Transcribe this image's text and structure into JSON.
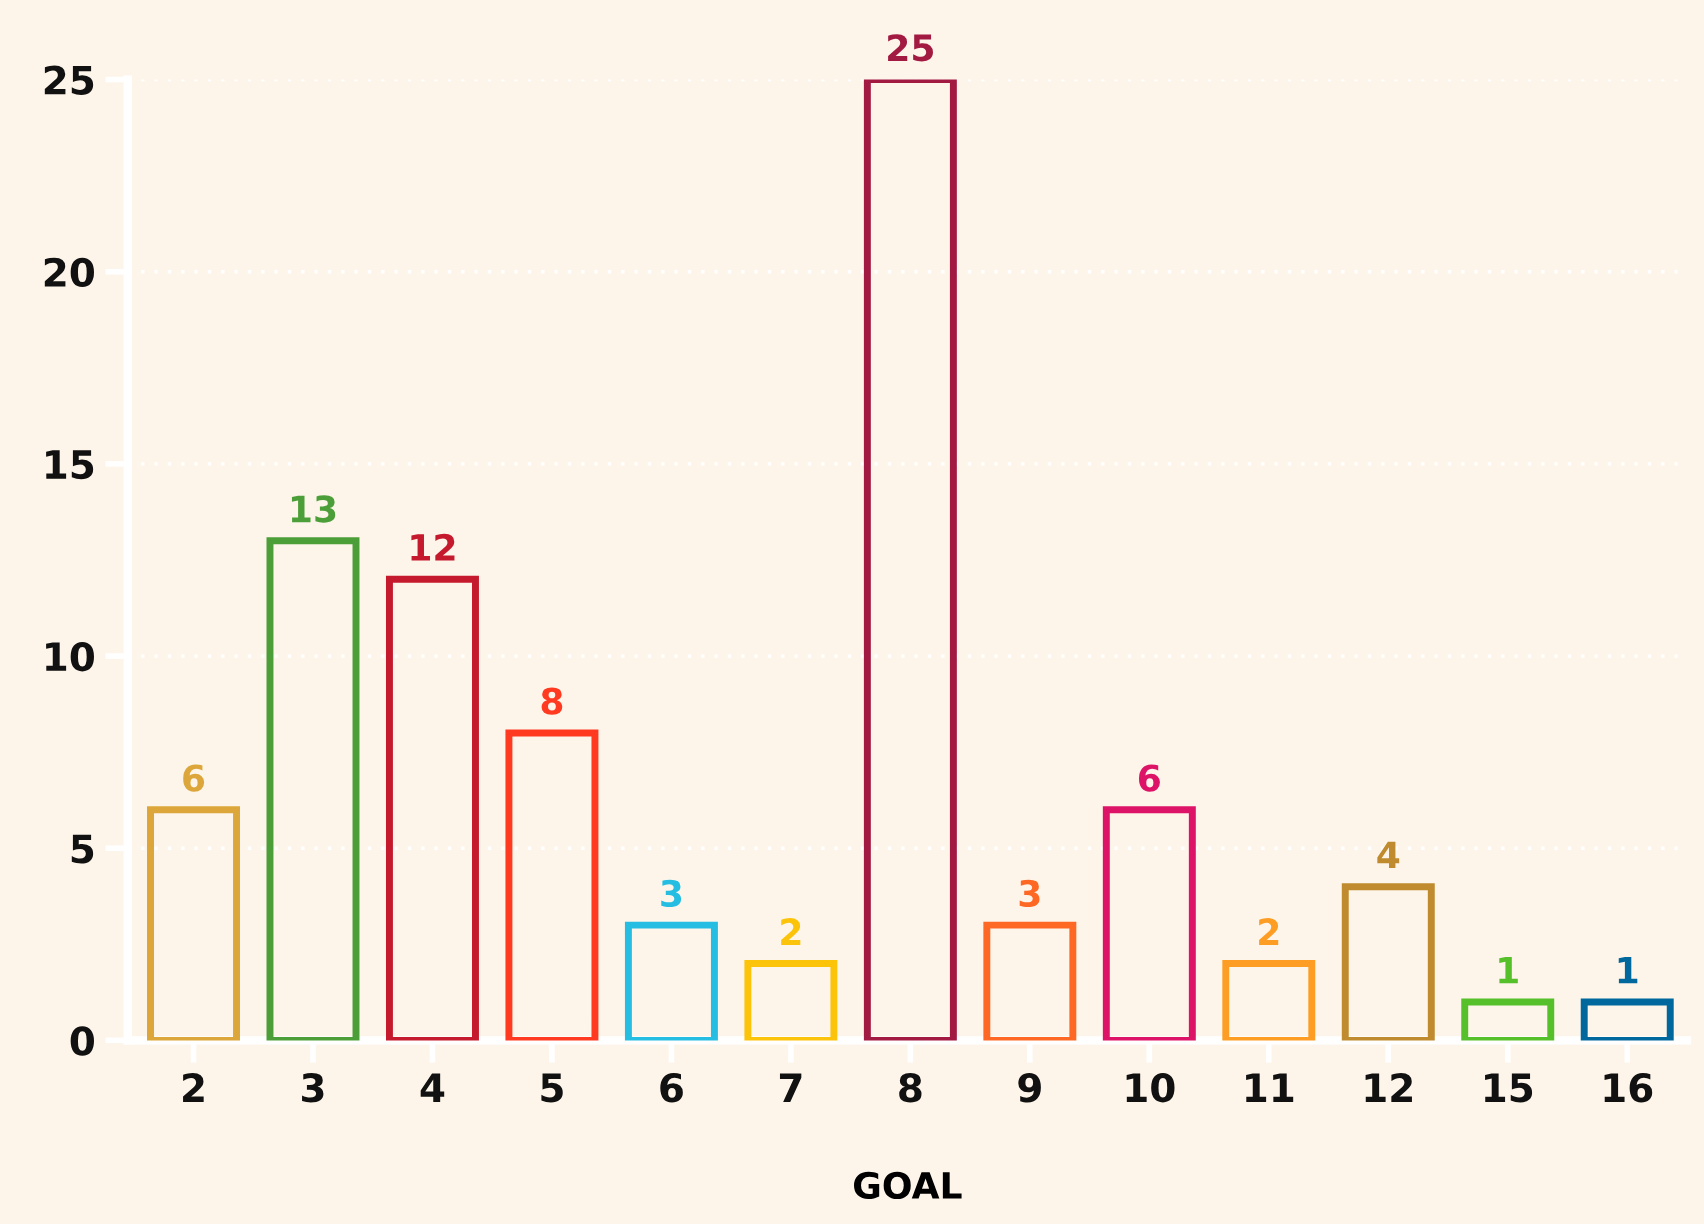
{
  "chart_data": {
    "type": "bar",
    "xlabel": "GOAL",
    "categories": [
      "2",
      "3",
      "4",
      "5",
      "6",
      "7",
      "8",
      "9",
      "10",
      "11",
      "12",
      "15",
      "16"
    ],
    "values": [
      6,
      13,
      12,
      8,
      3,
      2,
      25,
      3,
      6,
      2,
      4,
      1,
      1
    ],
    "colors": [
      "#dda63a",
      "#4c9f38",
      "#c5192d",
      "#ff3a21",
      "#26bde2",
      "#fcc30b",
      "#a21942",
      "#fd6925",
      "#dd1367",
      "#fd9d24",
      "#bf8b2e",
      "#56c02b",
      "#00689d"
    ],
    "ylim": [
      0,
      25
    ],
    "yticks": [
      0,
      5,
      10,
      15,
      20,
      25
    ],
    "grid": "y",
    "data_labels": true
  }
}
